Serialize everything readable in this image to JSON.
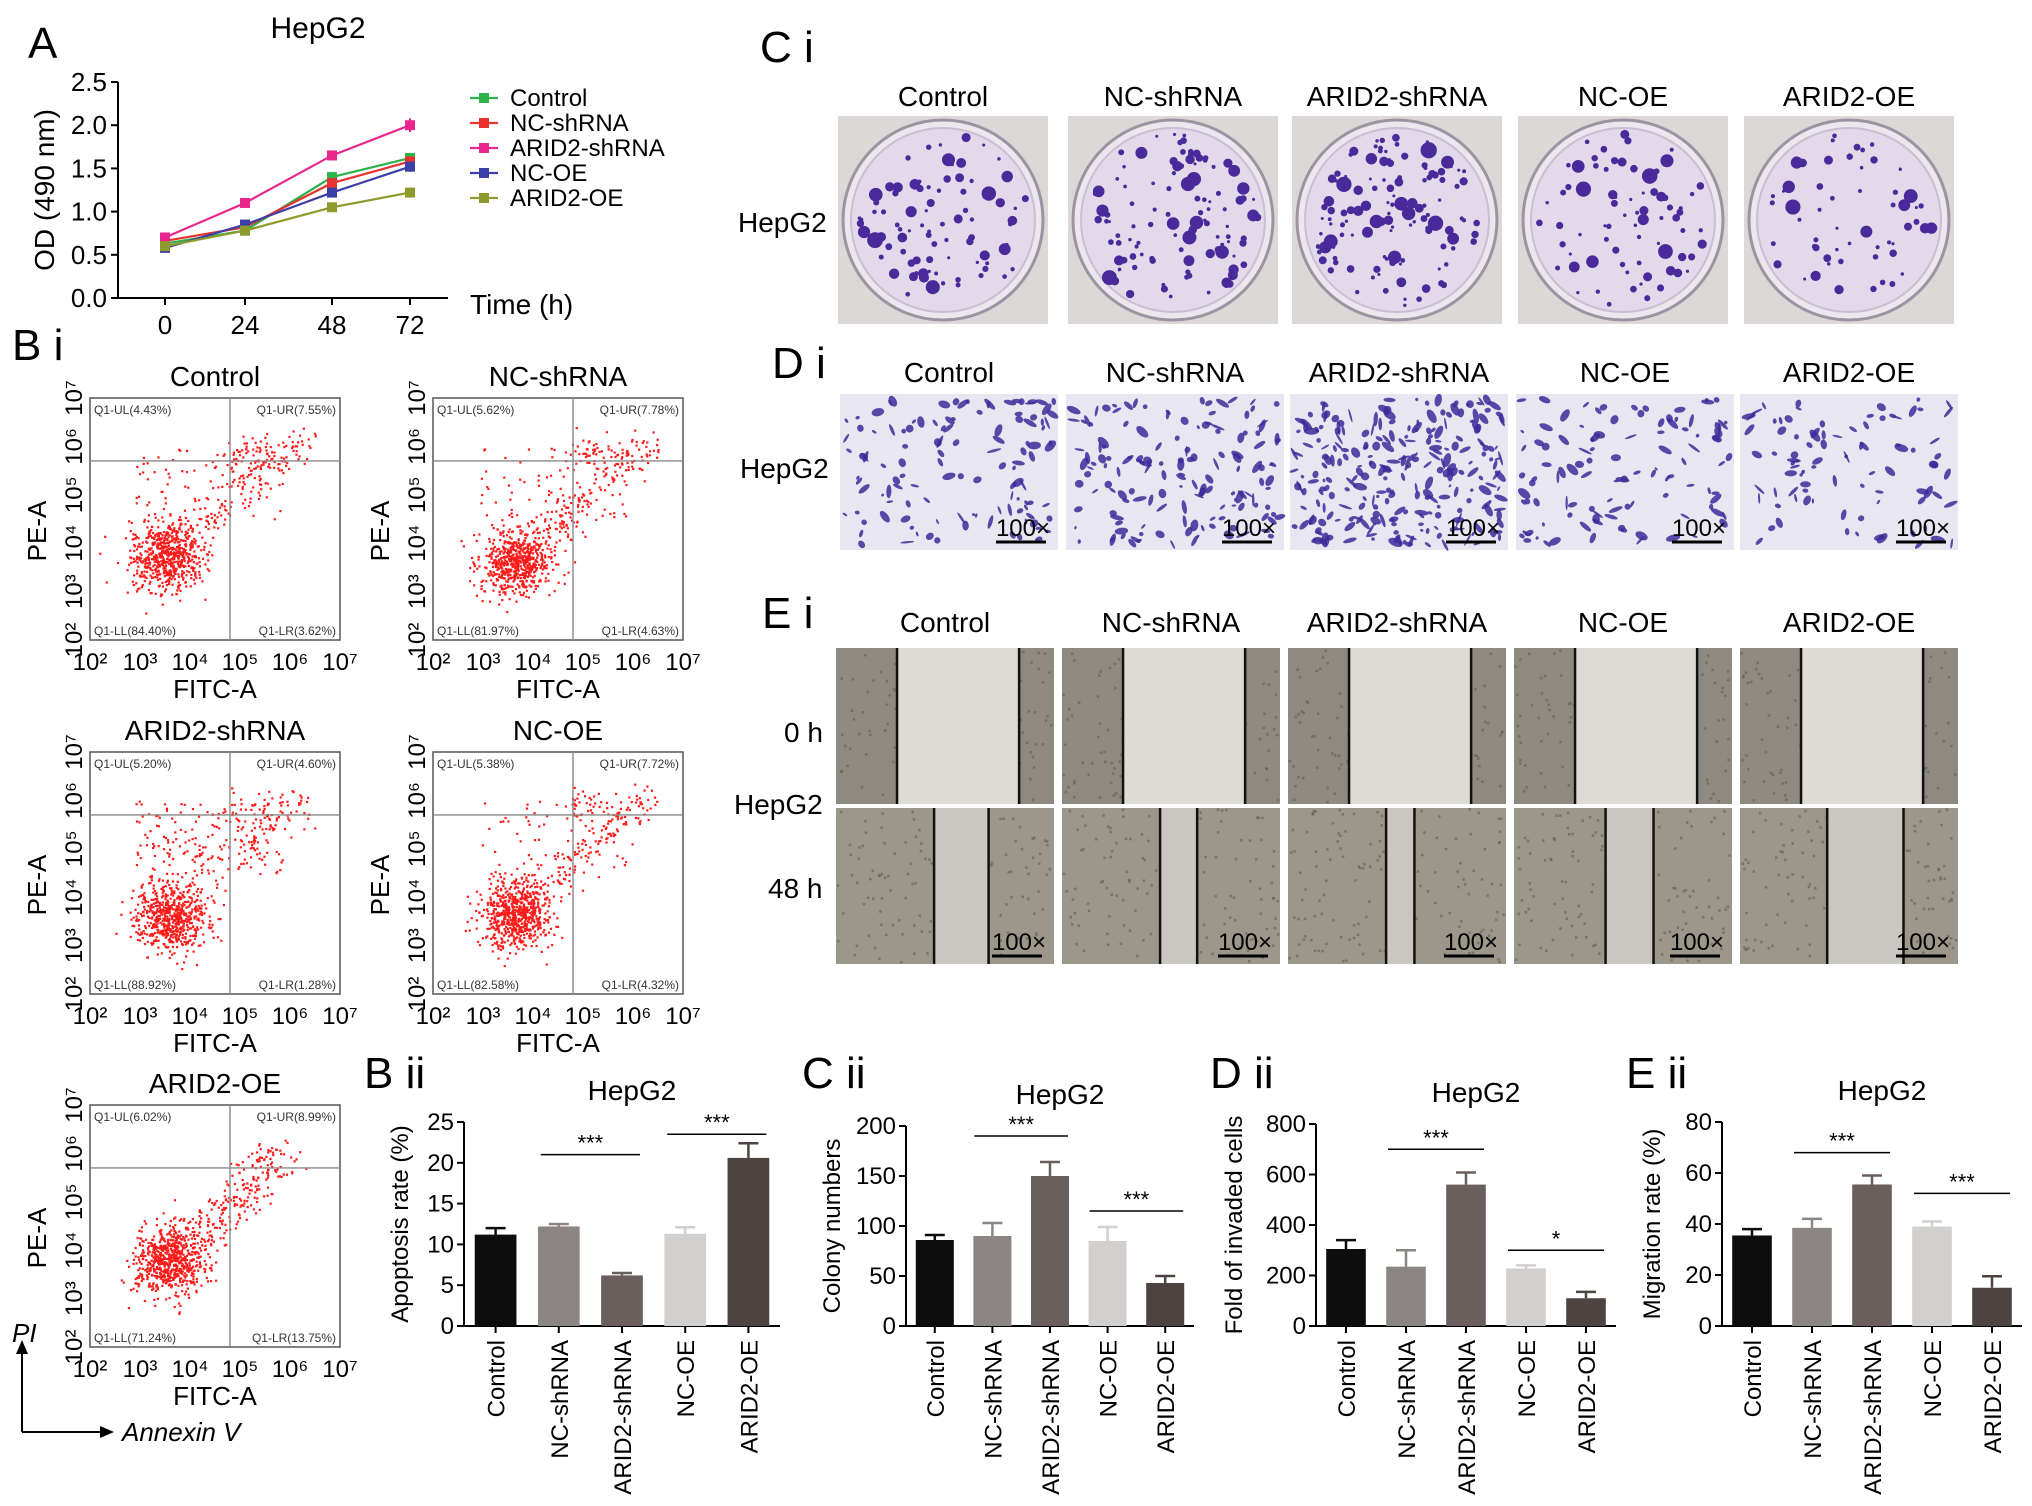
{
  "panel_letters": {
    "A": "A",
    "Bi": "B i",
    "Bii": "B ii",
    "Ci": "C i",
    "Cii": "C ii",
    "Di": "D i",
    "Dii": "D ii",
    "Ei": "E i",
    "Eii": "E ii"
  },
  "groups": [
    "Control",
    "NC-shRNA",
    "ARID2-shRNA",
    "NC-OE",
    "ARID2-OE"
  ],
  "colors": {
    "Control": "#2db34a",
    "NC-shRNA": "#e8322f",
    "ARID2-shRNA": "#e8268c",
    "NC-OE": "#3d3fa8",
    "ARID2-OE": "#8e9a2c",
    "bar_colors": [
      "#0d0d0d",
      "#8b8584",
      "#6b5f5e",
      "#d2d0cf",
      "#4d4341"
    ],
    "flow_dot": "#ff1a1a",
    "crystal_violet": "#4a2a9a"
  },
  "chart_data": [
    {
      "id": "A",
      "type": "line",
      "title": "HepG2",
      "xlabel": "Time (h)",
      "ylabel": "OD (490 nm)",
      "x": [
        0,
        24,
        48,
        72
      ],
      "x_ticks": [
        "0",
        "24",
        "48",
        "72"
      ],
      "y_ticks": [
        "0.0",
        "0.5",
        "1.0",
        "1.5",
        "2.0",
        "2.5"
      ],
      "ylim": [
        0,
        2.5
      ],
      "legend": "top-right",
      "series": [
        {
          "name": "Control",
          "values": [
            0.63,
            0.78,
            1.4,
            1.62
          ],
          "err": [
            0.04,
            0.04,
            0.05,
            0.06
          ]
        },
        {
          "name": "NC-shRNA",
          "values": [
            0.66,
            0.82,
            1.33,
            1.58
          ],
          "err": [
            0.04,
            0.04,
            0.05,
            0.06
          ]
        },
        {
          "name": "ARID2-shRNA",
          "values": [
            0.7,
            1.1,
            1.65,
            2.0
          ],
          "err": [
            0.04,
            0.05,
            0.04,
            0.08
          ]
        },
        {
          "name": "NC-OE",
          "values": [
            0.58,
            0.85,
            1.22,
            1.52
          ],
          "err": [
            0.04,
            0.04,
            0.05,
            0.06
          ]
        },
        {
          "name": "ARID2-OE",
          "values": [
            0.6,
            0.78,
            1.05,
            1.22
          ],
          "err": [
            0.04,
            0.04,
            0.05,
            0.05
          ]
        }
      ]
    },
    {
      "id": "Bii",
      "type": "bar",
      "title": "HepG2",
      "ylabel": "Apoptosis rate (%)",
      "categories": [
        "Control",
        "NC-shRNA",
        "ARID2-shRNA",
        "NC-OE",
        "ARID2-OE"
      ],
      "values": [
        11.2,
        12.2,
        6.2,
        11.3,
        20.6
      ],
      "err": [
        0.8,
        0.3,
        0.3,
        0.8,
        1.8
      ],
      "ylim": [
        0,
        25
      ],
      "y_ticks": [
        "0",
        "5",
        "10",
        "15",
        "20",
        "25"
      ],
      "brackets": [
        {
          "from": 1,
          "to": 2,
          "label": "***",
          "y": 21
        },
        {
          "from": 3,
          "to": 4,
          "label": "***",
          "y": 23.5
        }
      ]
    },
    {
      "id": "Cii",
      "type": "bar",
      "title": "HepG2",
      "ylabel": "Colony numbers",
      "categories": [
        "Control",
        "NC-shRNA",
        "ARID2-shRNA",
        "NC-OE",
        "ARID2-OE"
      ],
      "values": [
        86,
        90,
        150,
        85,
        43
      ],
      "err": [
        5,
        13,
        14,
        14,
        7
      ],
      "ylim": [
        0,
        200
      ],
      "y_ticks": [
        "0",
        "50",
        "100",
        "150",
        "200"
      ],
      "brackets": [
        {
          "from": 1,
          "to": 2,
          "label": "***",
          "y": 190
        },
        {
          "from": 3,
          "to": 4,
          "label": "***",
          "y": 115
        }
      ]
    },
    {
      "id": "Dii",
      "type": "bar",
      "title": "HepG2",
      "ylabel": "Fold of invaded cells",
      "categories": [
        "Control",
        "NC-shRNA",
        "ARID2-shRNA",
        "NC-OE",
        "ARID2-OE"
      ],
      "values": [
        305,
        235,
        560,
        228,
        110
      ],
      "err": [
        35,
        65,
        48,
        12,
        25
      ],
      "ylim": [
        0,
        800
      ],
      "y_ticks": [
        "0",
        "200",
        "400",
        "600",
        "800"
      ],
      "brackets": [
        {
          "from": 1,
          "to": 2,
          "label": "***",
          "y": 700
        },
        {
          "from": 3,
          "to": 4,
          "label": "*",
          "y": 300
        }
      ]
    },
    {
      "id": "Eii",
      "type": "bar",
      "title": "HepG2",
      "ylabel": "Migration rate (%)",
      "categories": [
        "Control",
        "NC-shRNA",
        "ARID2-shRNA",
        "NC-OE",
        "ARID2-OE"
      ],
      "values": [
        35.5,
        38.5,
        55.5,
        39,
        15
      ],
      "err": [
        2.5,
        3.5,
        3.5,
        2,
        4.5
      ],
      "ylim": [
        0,
        80
      ],
      "y_ticks": [
        "0",
        "20",
        "40",
        "60",
        "80"
      ],
      "brackets": [
        {
          "from": 1,
          "to": 2,
          "label": "***",
          "y": 68
        },
        {
          "from": 3,
          "to": 4,
          "label": "***",
          "y": 52
        }
      ]
    }
  ],
  "flow": {
    "cell_line": "",
    "x_label": "FITC-A",
    "y_label": "PE-A",
    "x_ticks": [
      "10²",
      "10³",
      "10⁴",
      "10⁵",
      "10⁶",
      "10⁷"
    ],
    "y_ticks": [
      "10²",
      "10³",
      "10⁴",
      "10⁵",
      "10⁶",
      "10⁷"
    ],
    "corner_pi": "PI",
    "corner_annexin": "Annexin V",
    "plots": [
      {
        "title": "Control",
        "UL": "Q1-UL(4.43%)",
        "UR": "Q1-UR(7.55%)",
        "LL": "Q1-LL(84.40%)",
        "LR": "Q1-LR(3.62%)"
      },
      {
        "title": "NC-shRNA",
        "UL": "Q1-UL(5.62%)",
        "UR": "Q1-UR(7.78%)",
        "LL": "Q1-LL(81.97%)",
        "LR": "Q1-LR(4.63%)"
      },
      {
        "title": "ARID2-shRNA",
        "UL": "Q1-UL(5.20%)",
        "UR": "Q1-UR(4.60%)",
        "LL": "Q1-LL(88.92%)",
        "LR": "Q1-LR(1.28%)"
      },
      {
        "title": "NC-OE",
        "UL": "Q1-UL(5.38%)",
        "UR": "Q1-UR(7.72%)",
        "LL": "Q1-LL(82.58%)",
        "LR": "Q1-LR(4.32%)"
      },
      {
        "title": "ARID2-OE",
        "UL": "Q1-UL(6.02%)",
        "UR": "Q1-UR(8.99%)",
        "LL": "Q1-LL(71.24%)",
        "LR": "Q1-LR(13.75%)"
      }
    ]
  },
  "images": {
    "row_label": "HepG2",
    "scale_label": "100×",
    "wound_times": [
      "0 h",
      "48 h"
    ]
  }
}
